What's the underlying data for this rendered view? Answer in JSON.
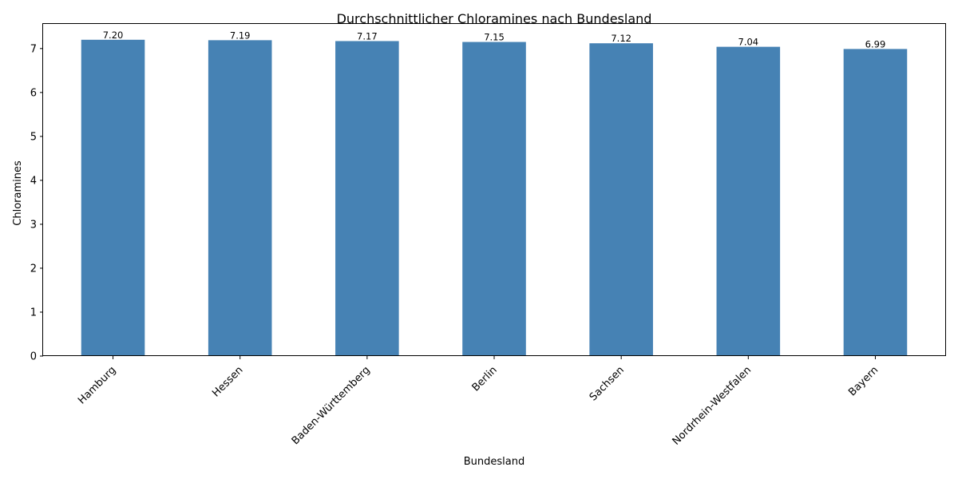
{
  "chart_data": {
    "type": "bar",
    "title": "Durchschnittlicher Chloramines nach Bundesland",
    "xlabel": "Bundesland",
    "ylabel": "Chloramines",
    "categories": [
      "Hamburg",
      "Hessen",
      "Baden-Württemberg",
      "Berlin",
      "Sachsen",
      "Nordrhein-Westfalen",
      "Bayern"
    ],
    "values": [
      7.2,
      7.19,
      7.17,
      7.15,
      7.12,
      7.04,
      6.99
    ],
    "value_labels": [
      "7.20",
      "7.19",
      "7.17",
      "7.15",
      "7.12",
      "7.04",
      "6.99"
    ],
    "yticks": [
      0,
      1,
      2,
      3,
      4,
      5,
      6,
      7
    ],
    "ylim": [
      0,
      7.56
    ],
    "grid": false,
    "bar_color": "#4682b4"
  }
}
